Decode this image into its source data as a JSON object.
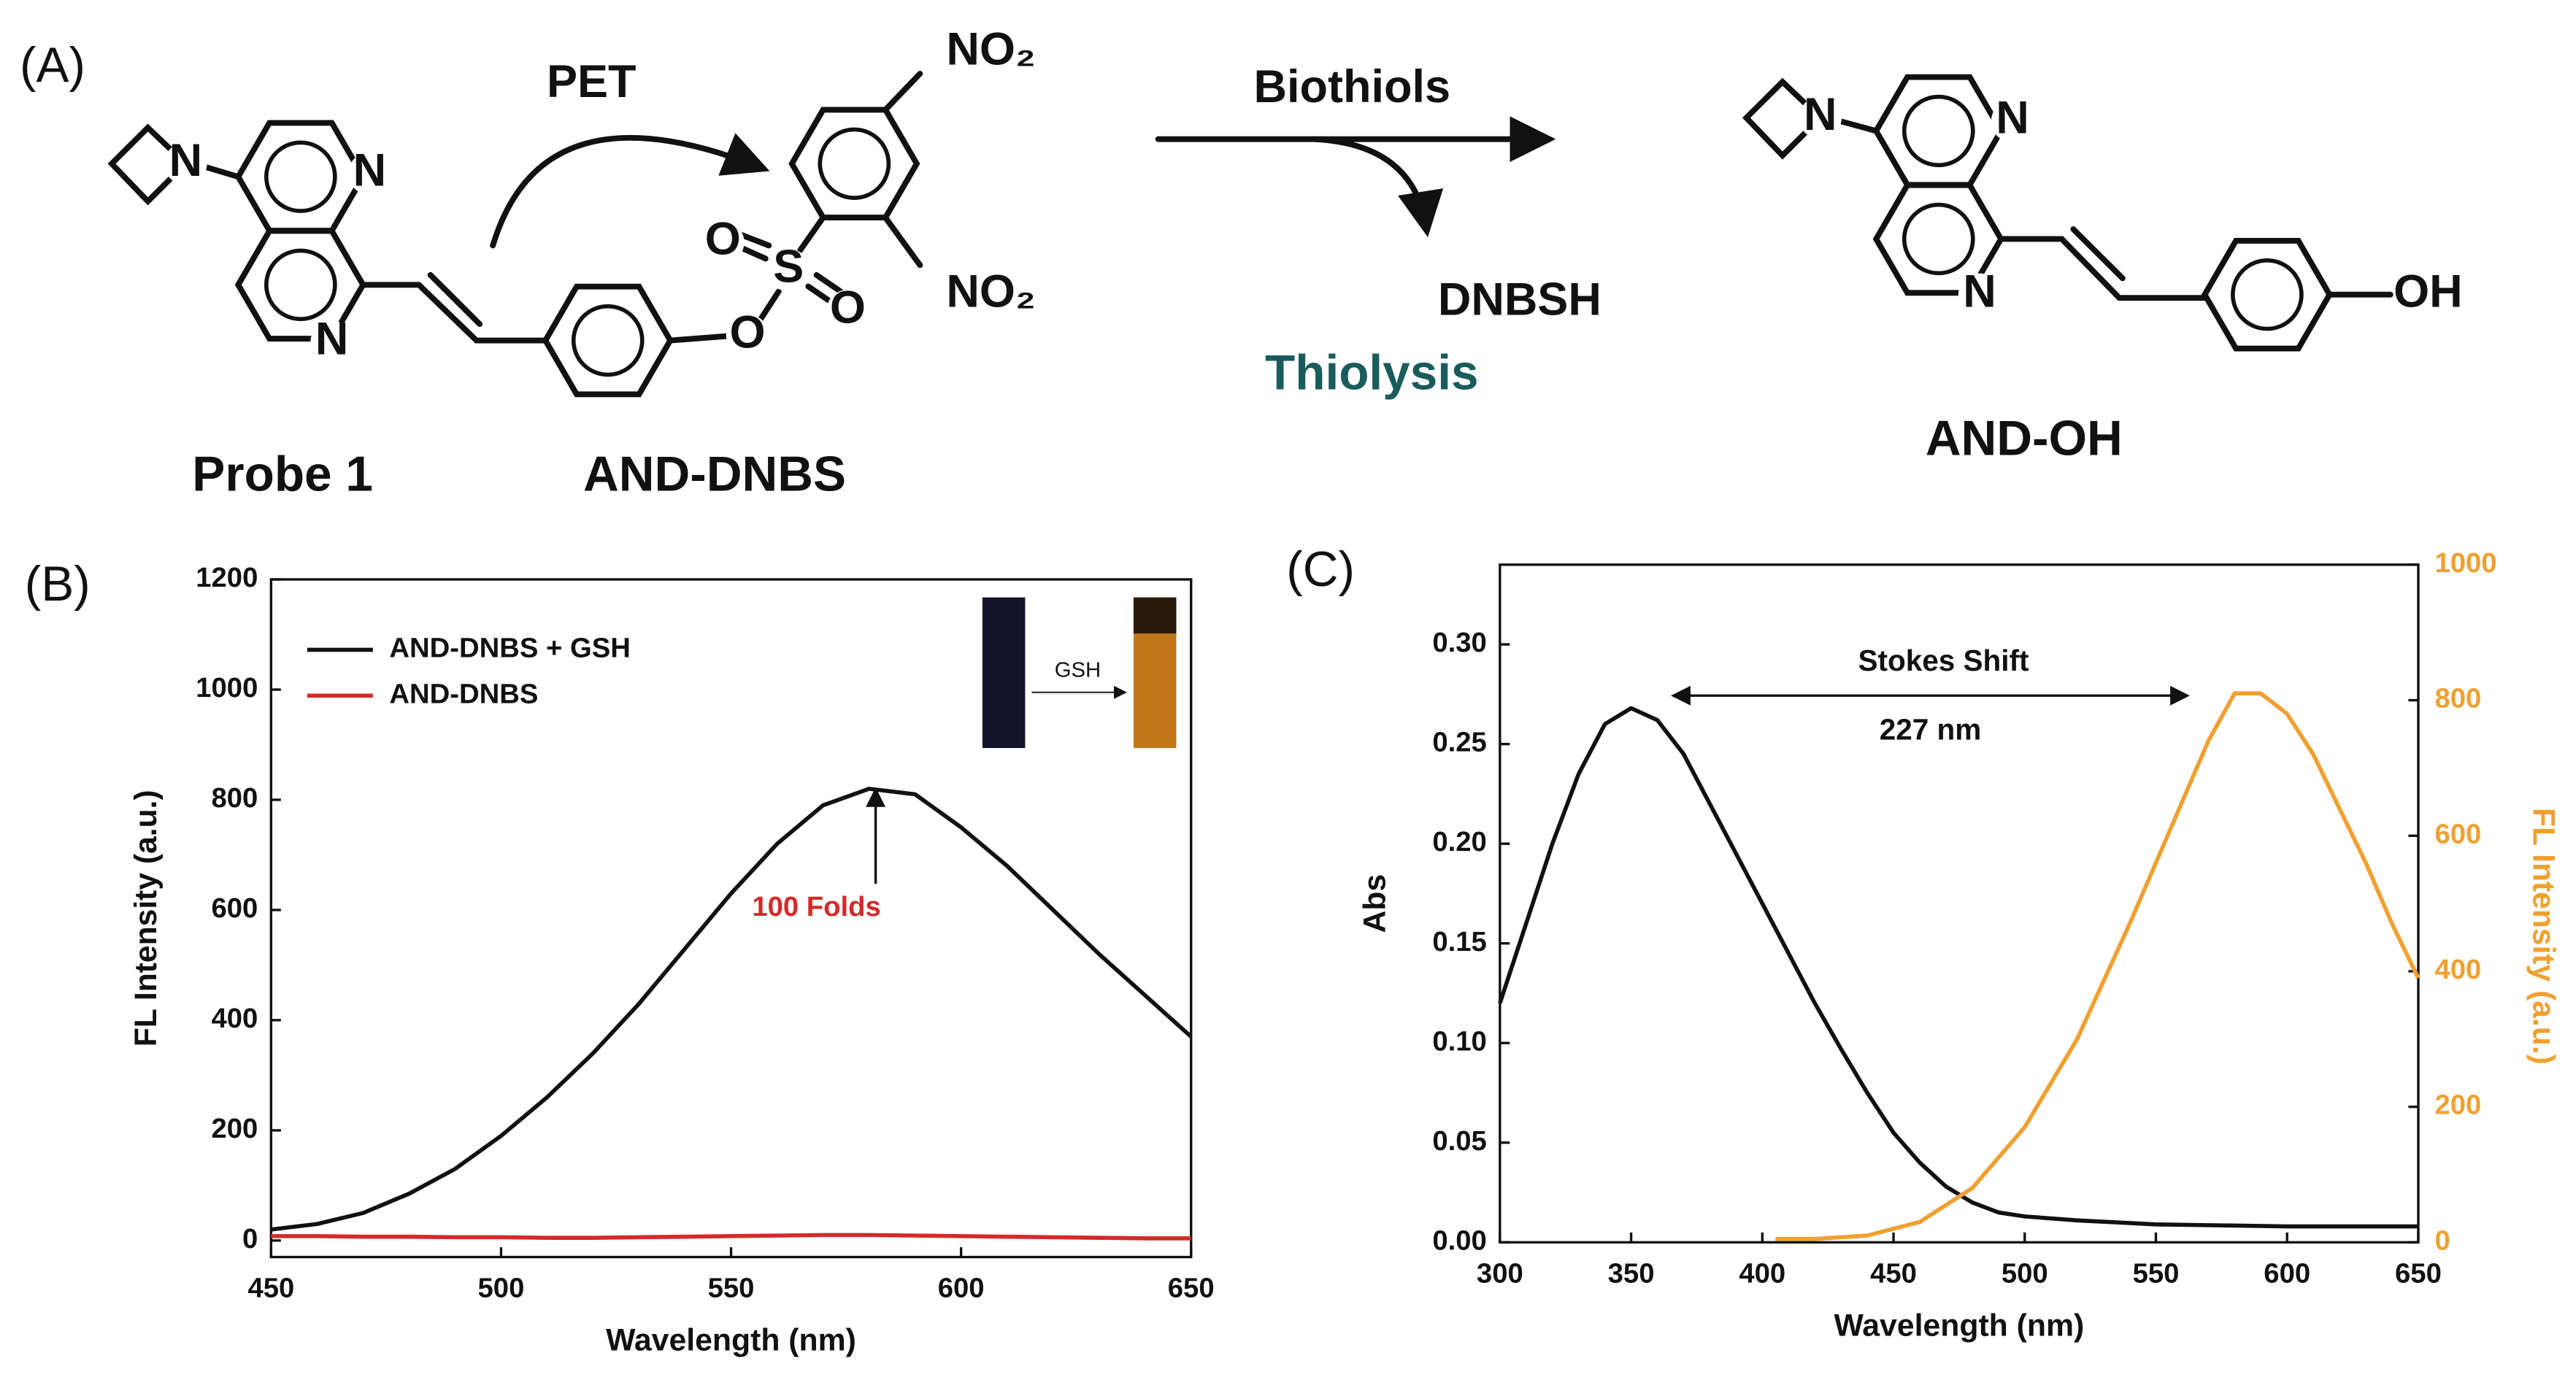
{
  "scheme": {
    "label": "(A)",
    "pet": "PET",
    "reagent": "Biothiols",
    "byproduct": "DNBSH",
    "reaction": "Thiolysis",
    "names": [
      "Probe 1",
      "AND-DNBS",
      "AND-OH"
    ],
    "atoms": [
      "N",
      "N",
      "N",
      "O",
      "S",
      "O",
      "O",
      "NO₂",
      "NO₂",
      "N",
      "N",
      "N",
      "OH"
    ]
  },
  "chart_data": [
    {
      "type": "line",
      "label": "(B)",
      "xlabel": "Wavelength (nm)",
      "ylabel": "FL Intensity (a.u.)",
      "xlim": [
        450,
        650
      ],
      "xticks": [
        450,
        500,
        550,
        600,
        650
      ],
      "ylim": [
        -30,
        1200
      ],
      "yticks": [
        0,
        200,
        400,
        600,
        800,
        1000,
        1200
      ],
      "legend": "upper left",
      "annotation": "100 Folds",
      "inset_label": "GSH",
      "x": [
        450,
        460,
        470,
        480,
        490,
        500,
        510,
        520,
        530,
        540,
        550,
        560,
        570,
        580,
        590,
        600,
        610,
        620,
        630,
        640,
        650
      ],
      "series": [
        {
          "name": "AND-DNBS + GSH",
          "color": "#111111",
          "values": [
            20,
            30,
            50,
            85,
            130,
            190,
            260,
            340,
            430,
            530,
            630,
            720,
            790,
            820,
            810,
            750,
            680,
            600,
            520,
            445,
            370
          ]
        },
        {
          "name": "AND-DNBS",
          "color": "#d42a2a",
          "values": [
            8,
            8,
            7,
            7,
            6,
            6,
            5,
            5,
            6,
            7,
            8,
            9,
            10,
            10,
            9,
            8,
            7,
            6,
            5,
            4,
            4
          ]
        }
      ]
    },
    {
      "type": "line",
      "label": "(C)",
      "xlabel": "Wavelength (nm)",
      "ylabel": "Abs",
      "y2label": "FL Intensity (a.u.)",
      "xlim": [
        300,
        650
      ],
      "xticks": [
        300,
        350,
        400,
        450,
        500,
        550,
        600,
        650
      ],
      "ylim": [
        0,
        0.34
      ],
      "yticks": [
        {
          "value": 0,
          "label": "0.00"
        },
        {
          "value": 0.05,
          "label": "0.05"
        },
        {
          "value": 0.1,
          "label": "0.10"
        },
        {
          "value": 0.15,
          "label": "0.15"
        },
        {
          "value": 0.2,
          "label": "0.20"
        },
        {
          "value": 0.25,
          "label": "0.25"
        },
        {
          "value": 0.3,
          "label": "0.30"
        }
      ],
      "y2lim": [
        0,
        1000
      ],
      "y2ticks": [
        0,
        200,
        400,
        600,
        800,
        1000
      ],
      "y2color": "#f0a030",
      "annotations": [
        "Stokes Shift",
        "227 nm"
      ],
      "series": [
        {
          "color": "#111111",
          "x": [
            300,
            310,
            320,
            330,
            340,
            350,
            360,
            370,
            380,
            390,
            400,
            410,
            420,
            430,
            440,
            450,
            460,
            470,
            480,
            490,
            500,
            520,
            550,
            600,
            650
          ],
          "values": [
            0.12,
            0.16,
            0.2,
            0.235,
            0.26,
            0.268,
            0.262,
            0.245,
            0.22,
            0.195,
            0.17,
            0.145,
            0.12,
            0.097,
            0.075,
            0.055,
            0.04,
            0.028,
            0.02,
            0.015,
            0.013,
            0.011,
            0.009,
            0.008,
            0.008
          ]
        },
        {
          "color": "#f0a030",
          "axis": "y2",
          "x": [
            405,
            420,
            440,
            460,
            480,
            500,
            520,
            540,
            560,
            570,
            580,
            590,
            600,
            610,
            620,
            630,
            640,
            650
          ],
          "values": [
            5,
            5,
            10,
            30,
            80,
            170,
            300,
            470,
            650,
            740,
            810,
            810,
            780,
            720,
            640,
            560,
            470,
            390
          ]
        }
      ]
    }
  ]
}
